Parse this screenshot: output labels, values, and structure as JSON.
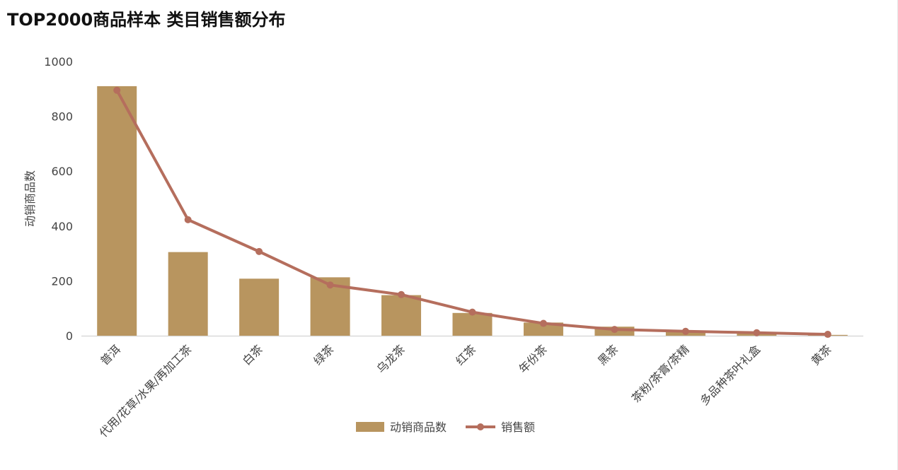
{
  "chart_data": {
    "type": "bar",
    "title": "TOP2000商品样本 类目销售额分布",
    "ylabel": "动销商品数",
    "xlabel": "",
    "ylim": [
      0,
      1000
    ],
    "yticks": [
      0,
      200,
      400,
      600,
      800,
      1000
    ],
    "grid": false,
    "legend_position": "bottom",
    "categories": [
      "普洱",
      "代用/花草/水果/再加工茶",
      "白茶",
      "绿茶",
      "乌龙茶",
      "红茶",
      "年份茶",
      "黑茶",
      "茶粉/茶膏/茶精",
      "多品种茶叶礼盒",
      "黄茶"
    ],
    "series": [
      {
        "name": "动销商品数",
        "type": "bar",
        "color": "#b8955f",
        "values": [
          910,
          305,
          208,
          213,
          148,
          83,
          48,
          33,
          18,
          10,
          3
        ]
      },
      {
        "name": "销售额",
        "type": "line",
        "color": "#b56e5d",
        "values": [
          895,
          423,
          307,
          185,
          150,
          86,
          45,
          23,
          16,
          11,
          5
        ]
      }
    ]
  }
}
